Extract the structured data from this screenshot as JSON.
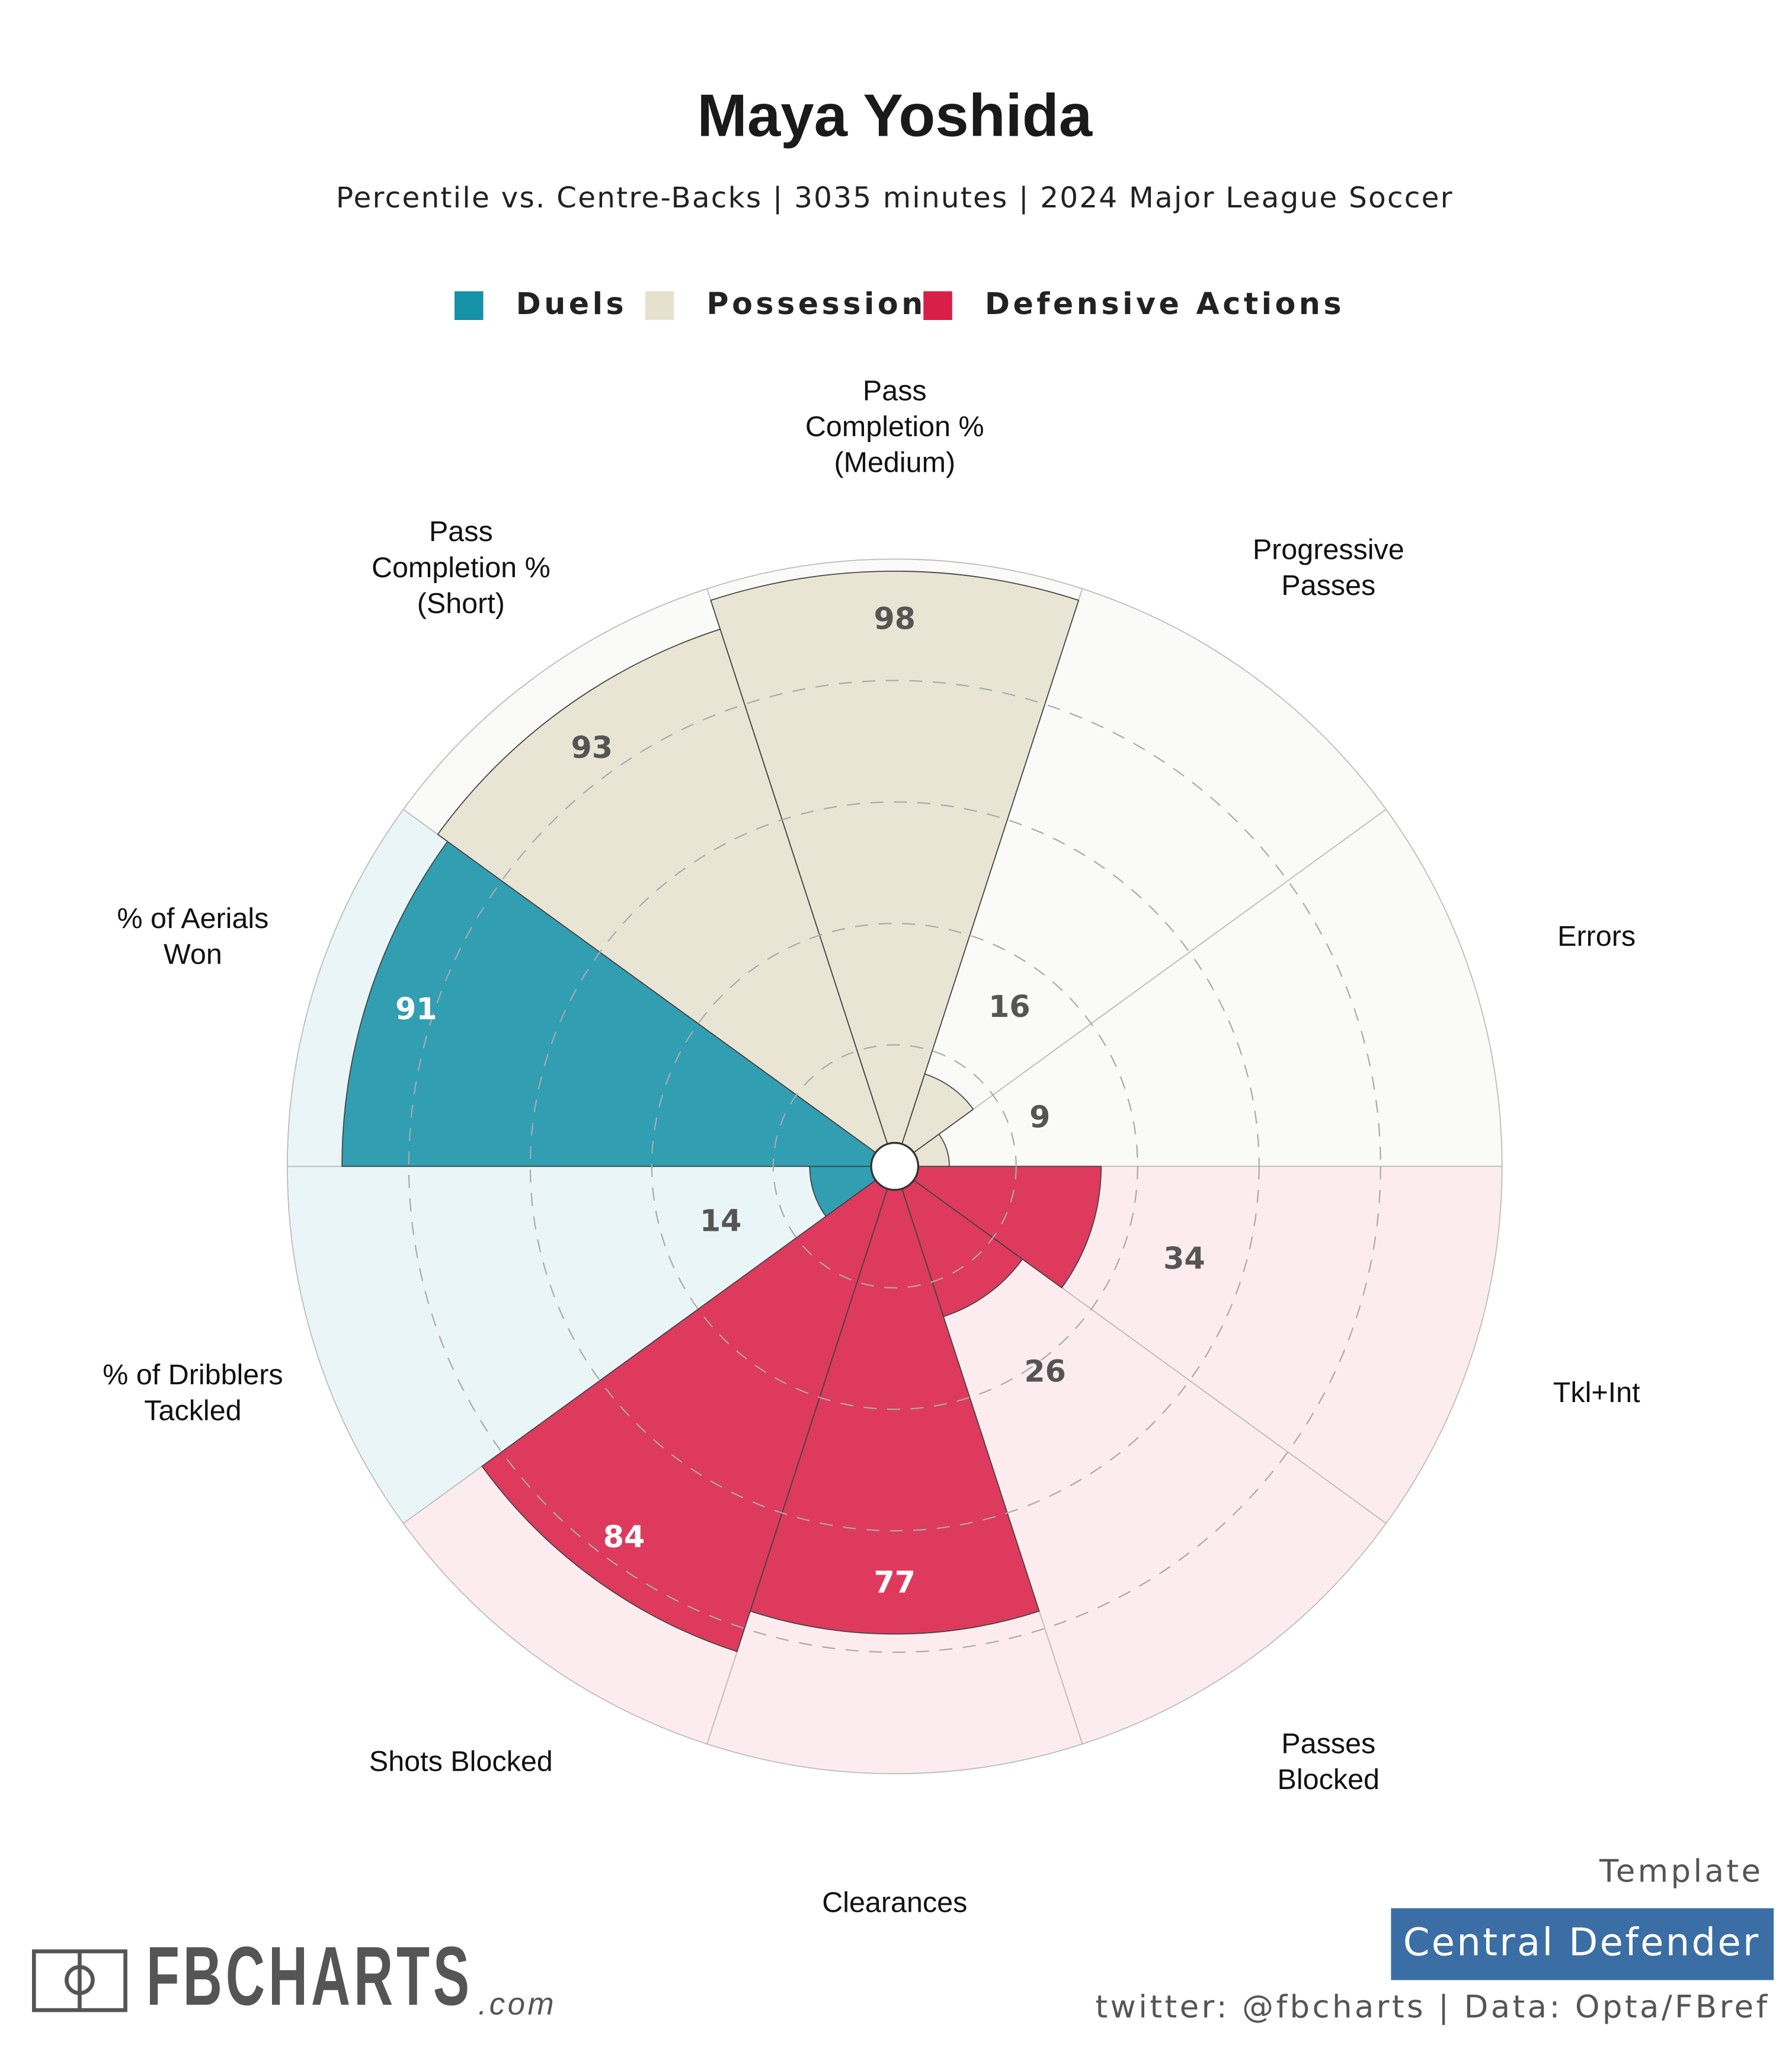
{
  "chart_data": {
    "type": "pizza",
    "title": "Maya Yoshida",
    "subtitle": "Percentile vs. Centre-Backs | 3035 minutes | 2024 Major League Soccer",
    "categories": [
      "Pass\nCompletion %\n(Medium)",
      "Progressive\nPasses",
      "Errors",
      "Tkl+Int",
      "Passes\nBlocked",
      "Clearances",
      "Shots Blocked",
      "% of Dribblers\nTackled",
      "% of Aerials\nWon",
      "Pass\nCompletion %\n(Short)"
    ],
    "series": [
      {
        "name": "Duels",
        "color": "#1591a8",
        "background": "#eaf5f8",
        "values": [
          null,
          null,
          null,
          null,
          null,
          null,
          null,
          14,
          91,
          null
        ]
      },
      {
        "name": "Possession",
        "color": "#e6e1cf",
        "background": "#fafaf8",
        "values": [
          98,
          16,
          9,
          null,
          null,
          null,
          null,
          null,
          null,
          93
        ]
      },
      {
        "name": "Defensive Actions",
        "color": "#d91f48",
        "background": "#fcecf0",
        "values": [
          null,
          null,
          null,
          34,
          26,
          77,
          84,
          null,
          null,
          null
        ]
      }
    ],
    "ylim": [
      0,
      100
    ],
    "yticks": [
      20,
      40,
      60,
      80
    ],
    "grid": true
  },
  "footer": {
    "template_label": "Template",
    "template": "Central Defender",
    "credit": "twitter: @fbcharts | Data: Opta/FBref",
    "logo": "FBCHARTS",
    "logo_suffix": ".com"
  }
}
